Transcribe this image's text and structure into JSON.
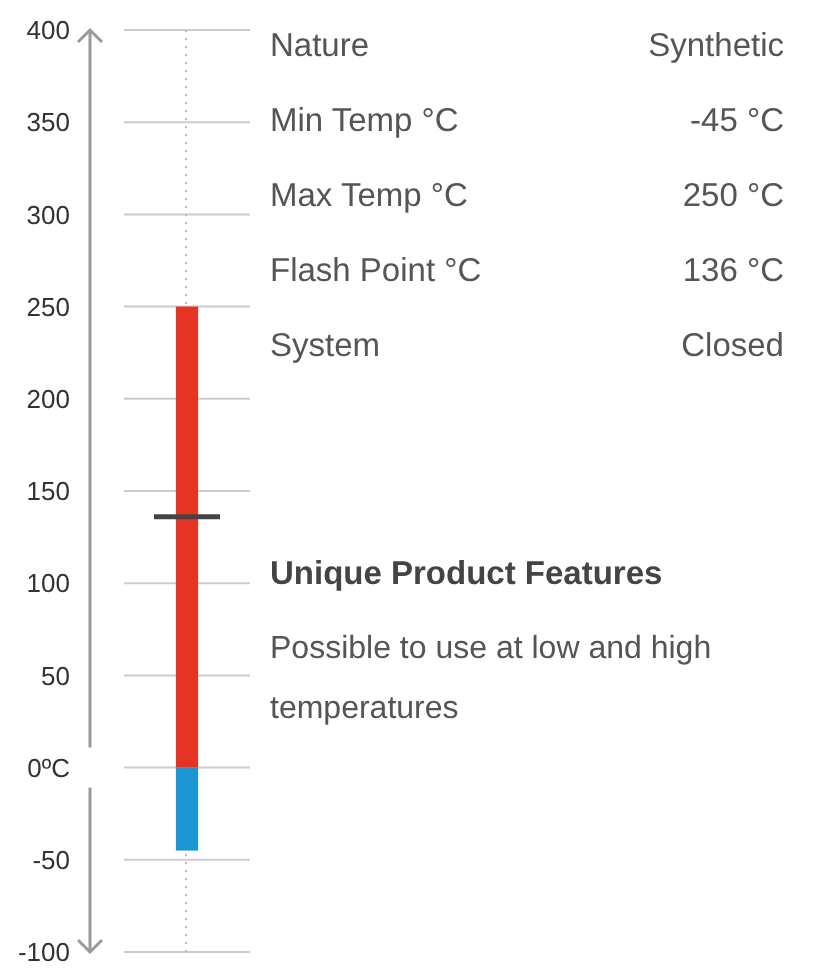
{
  "chart_data": [
    {
      "type": "bar",
      "categories": [
        null
      ],
      "stacked": true,
      "ylim": [
        -100,
        400
      ],
      "series": [
        {
          "color": "#1b95d3",
          "values": [
            -45
          ]
        },
        {
          "color": "#e53424",
          "values": [
            250
          ]
        }
      ],
      "yticks": [
        -100,
        -50,
        {
          "value": 0,
          "label": "0ºC"
        },
        50,
        100,
        150,
        200,
        250,
        300,
        350,
        400
      ],
      "grid": "y",
      "ref_lines": [
        {
          "axis": "y",
          "value": 136,
          "color": "#444444"
        }
      ]
    },
    {
      "type": "other",
      "title": "Unique Product Features",
      "subtitle": "Possible to use at low and high temperatures",
      "annotations": [
        "Nature",
        "Synthetic",
        "Min Temp °C",
        "-45 °C",
        "Max Temp °C",
        "250 °C",
        "Flash Point °C",
        "136 °C",
        "System",
        "Closed"
      ]
    }
  ]
}
